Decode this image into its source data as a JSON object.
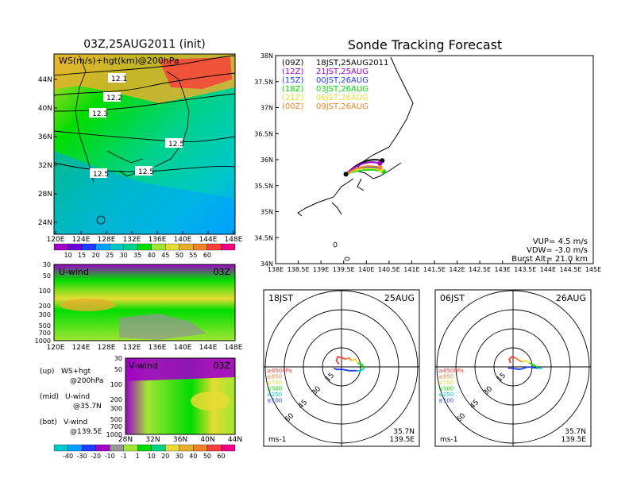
{
  "left_title": "03Z,25AUG2011 (init)",
  "right_title": "Sonde Tracking Forecast",
  "colors": {
    "ws_palette": [
      "#a000c8",
      "#6e00dc",
      "#1e3cff",
      "#00a0ff",
      "#00c8c8",
      "#00d28c",
      "#00dc00",
      "#a0e632",
      "#e6dc32",
      "#e6af2d",
      "#f08228",
      "#fa3c3c",
      "#f00082"
    ],
    "wind_palette": [
      "#00c8c8",
      "#00a0ff",
      "#1e3cff",
      "#a000c8",
      "#969696",
      "#a0e632",
      "#00dc00",
      "#00d28c",
      "#e6dc32",
      "#e6af2d",
      "#f08228",
      "#fa3c3c",
      "#f00082"
    ],
    "track_00z": "#000000",
    "track_12z": "#a000c8",
    "track_15z": "#1e3cff",
    "track_18z": "#00dc00",
    "track_21z": "#e6dc32",
    "track_00z_next": "#f08228"
  },
  "panels": {
    "ws_map": {
      "label": "WS(m/s)+hgt(km)@200hPa",
      "x_ticks": [
        "120E",
        "124E",
        "128E",
        "132E",
        "136E",
        "140E",
        "144E",
        "148E"
      ],
      "y_ticks": [
        "44N",
        "40N",
        "36N",
        "32N",
        "28N",
        "24N"
      ],
      "contour_labels": [
        "12.1",
        "12.2",
        "12.3",
        "12.5",
        "12.5",
        "12.5"
      ],
      "colorbar_ticks": [
        "10",
        "15",
        "20",
        "25",
        "30",
        "35",
        "40",
        "45",
        "50",
        "55",
        "60"
      ]
    },
    "u_wind": {
      "label": "U-wind",
      "time": "03Z",
      "y_ticks": [
        "30",
        "50",
        "100",
        "200",
        "300",
        "500",
        "700",
        "1000"
      ],
      "x_ticks": [
        "120E",
        "124E",
        "128E",
        "132E",
        "136E",
        "140E",
        "144E",
        "148E"
      ]
    },
    "v_wind": {
      "label": "V-wind",
      "time": "03Z",
      "y_ticks": [
        "30",
        "50",
        "100",
        "200",
        "300",
        "500",
        "700",
        "1000"
      ],
      "x_ticks": [
        "28N",
        "32N",
        "36N",
        "40N",
        "44N"
      ]
    },
    "wind_colorbar_ticks": [
      "-40",
      "-30",
      "-20",
      "-10",
      "-1",
      "1",
      "10",
      "20",
      "30",
      "40",
      "50",
      "60"
    ],
    "legend_lines": [
      {
        "tag": "(up)",
        "text": "WS+hgt",
        "sub": "@200hPa"
      },
      {
        "tag": "(mid)",
        "text": "U-wind",
        "sub": "@35.7N"
      },
      {
        "tag": "(bot)",
        "text": "V-wind",
        "sub": "@139.5E"
      }
    ]
  },
  "chart_data": [
    {
      "type": "scatter",
      "title": "Sonde Tracking Forecast",
      "xlim": [
        138.0,
        145.0
      ],
      "ylim": [
        34.0,
        38.0
      ],
      "x_ticks": [
        "138E",
        "138.5E",
        "139E",
        "139.5E",
        "140E",
        "140.5E",
        "141E",
        "141.5E",
        "142E",
        "142.5E",
        "143E",
        "143.5E",
        "144E",
        "144.5E",
        "145E"
      ],
      "y_ticks": [
        "38N",
        "37.5N",
        "37N",
        "36.5N",
        "36N",
        "35.5N",
        "35N",
        "34.5N",
        "34N"
      ],
      "legend": [
        {
          "code": "(09Z)",
          "label": "18JST,25AUG2011"
        },
        {
          "code": "(12Z)",
          "label": "21JST,25AUG"
        },
        {
          "code": "(15Z)",
          "label": "00JST,26AUG"
        },
        {
          "code": "(18Z)",
          "label": "03JST,26AUG"
        },
        {
          "code": "(21Z)",
          "label": "06JST,26AUG"
        },
        {
          "code": "(00Z)",
          "label": "09JST,26AUG"
        }
      ],
      "launch": {
        "lon": 139.55,
        "lat": 35.72
      },
      "series": [
        {
          "name": "(09Z)",
          "color": "#000000",
          "end": {
            "lon": 140.35,
            "lat": 35.98
          }
        },
        {
          "name": "(12Z)",
          "color": "#a000c8",
          "end": {
            "lon": 140.3,
            "lat": 35.93
          }
        },
        {
          "name": "(15Z)",
          "color": "#1e3cff",
          "end": {
            "lon": 140.3,
            "lat": 35.83
          }
        },
        {
          "name": "(18Z)",
          "color": "#00dc00",
          "end": {
            "lon": 140.38,
            "lat": 35.77
          }
        },
        {
          "name": "(21Z)",
          "color": "#e6dc32",
          "end": {
            "lon": 140.32,
            "lat": 35.8
          }
        },
        {
          "name": "(00Z)",
          "color": "#f08228",
          "end": {
            "lon": 140.3,
            "lat": 35.85
          }
        }
      ],
      "info": [
        "VUP= 4.5 m/s",
        "VDW= -3.0 m/s",
        "Burst Alt= 21.0 km"
      ]
    },
    {
      "type": "line",
      "title_left": "18JST",
      "title_right": "25AUG",
      "ring_labels": [
        "15",
        "30",
        "45",
        "60"
      ],
      "level_labels": [
        "≥850hPa",
        "≤850",
        "≤700",
        "≤500",
        "≤250",
        "≤100"
      ],
      "units": "ms-1",
      "position": [
        "35.7N",
        "139.5E"
      ],
      "hodograph": [
        {
          "level": "≥850hPa",
          "color": "#fa3c3c",
          "u": [
            -2,
            -4,
            -3,
            1,
            3
          ],
          "v": [
            2,
            5,
            8,
            7,
            6
          ]
        },
        {
          "level": "≤850",
          "color": "#f08228",
          "u": [
            3,
            6,
            8
          ],
          "v": [
            6,
            7,
            5
          ]
        },
        {
          "level": "≤700",
          "color": "#e6dc32",
          "u": [
            8,
            11,
            13
          ],
          "v": [
            5,
            6,
            3
          ]
        },
        {
          "level": "≤500",
          "color": "#00dc00",
          "u": [
            13,
            16,
            18
          ],
          "v": [
            3,
            2,
            -1
          ]
        },
        {
          "level": "≤250",
          "color": "#00c8c8",
          "u": [
            18,
            15,
            12
          ],
          "v": [
            -1,
            -3,
            -3
          ]
        },
        {
          "level": "≤100",
          "color": "#1e3cff",
          "u": [
            12,
            6,
            1,
            -4,
            -6
          ],
          "v": [
            -3,
            -3,
            -2,
            -2,
            -1
          ]
        }
      ]
    },
    {
      "type": "line",
      "title_left": "06JST",
      "title_right": "26AUG",
      "ring_labels": [
        "15",
        "30",
        "45",
        "60"
      ],
      "level_labels": [
        "≥850hPa",
        "≤850",
        "≤700",
        "≤500",
        "≤250",
        "≤100"
      ],
      "units": "ms-1",
      "position": [
        "35.7N",
        "139.5E"
      ],
      "hodograph": [
        {
          "level": "≥850hPa",
          "color": "#fa3c3c",
          "u": [
            -2,
            -3,
            -1,
            2
          ],
          "v": [
            3,
            6,
            8,
            7
          ]
        },
        {
          "level": "≤850",
          "color": "#f08228",
          "u": [
            2,
            5,
            7
          ],
          "v": [
            7,
            5,
            4
          ]
        },
        {
          "level": "≤700",
          "color": "#e6dc32",
          "u": [
            7,
            10,
            13
          ],
          "v": [
            4,
            5,
            3
          ]
        },
        {
          "level": "≤500",
          "color": "#00dc00",
          "u": [
            13,
            17,
            20
          ],
          "v": [
            3,
            1,
            -1
          ]
        },
        {
          "level": "≤250",
          "color": "#00c8c8",
          "u": [
            20,
            23,
            19
          ],
          "v": [
            -1,
            -1,
            -1
          ]
        },
        {
          "level": "≤100",
          "color": "#1e3cff",
          "u": [
            19,
            12,
            5,
            -1,
            -4
          ],
          "v": [
            -1,
            0,
            -2,
            -1,
            -1
          ]
        }
      ]
    }
  ]
}
